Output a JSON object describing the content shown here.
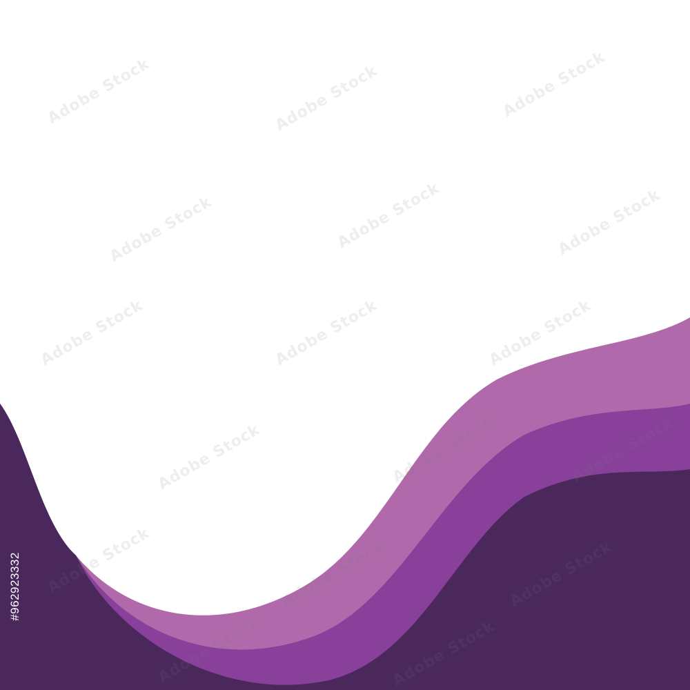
{
  "image": {
    "watermark_text": "Adobe Stock",
    "stock_id": "#962923332",
    "colors": {
      "background": "#ffffff",
      "wave_light": "#b069aa",
      "wave_mid": "#88409a",
      "wave_dark": "#4a285c"
    }
  }
}
